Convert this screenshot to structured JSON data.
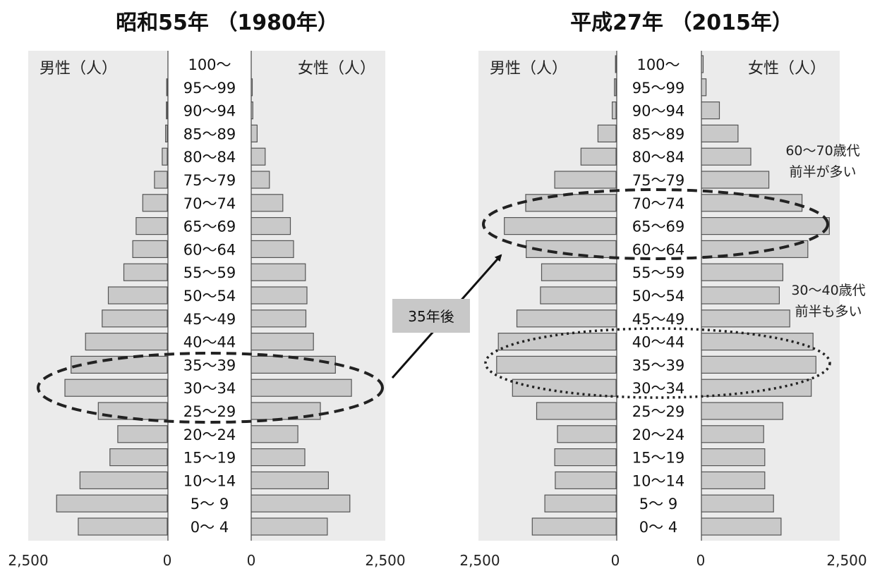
{
  "chart_data": [
    {
      "type": "bar",
      "title": "昭和55年 （1980年）",
      "male_label": "男性（人）",
      "female_label": "女性（人）",
      "xlim": [
        0,
        2500
      ],
      "axis_ticks": {
        "male": [
          "2,500",
          "0"
        ],
        "female": [
          "0",
          "2,500"
        ]
      },
      "categories": [
        "0～ 4",
        "5～ 9",
        "10～14",
        "15～19",
        "20～24",
        "25～29",
        "30～34",
        "35～39",
        "40～44",
        "45～49",
        "50～54",
        "55～59",
        "60～64",
        "65～69",
        "70～74",
        "75～79",
        "80～84",
        "85～89",
        "90～94",
        "95～99",
        "100～"
      ],
      "series": [
        {
          "name": "男性（人）",
          "values": [
            1600,
            1990,
            1570,
            1030,
            890,
            1240,
            1840,
            1730,
            1470,
            1170,
            1060,
            780,
            620,
            560,
            440,
            230,
            90,
            30,
            15,
            10,
            0
          ]
        },
        {
          "name": "女性（人）",
          "values": [
            1420,
            1840,
            1440,
            1000,
            870,
            1290,
            1870,
            1570,
            1160,
            1020,
            1040,
            1010,
            790,
            730,
            590,
            340,
            260,
            110,
            30,
            20,
            0
          ]
        }
      ],
      "highlight": {
        "categories": [
          "25～29",
          "30～34",
          "35～39"
        ],
        "style": "dashed"
      }
    },
    {
      "type": "bar",
      "title": "平成27年 （2015年）",
      "male_label": "男性（人）",
      "female_label": "女性（人）",
      "xlim": [
        0,
        2500
      ],
      "axis_ticks": {
        "male": [
          "2,500",
          "0"
        ],
        "female": [
          "0",
          "2,500"
        ]
      },
      "categories": [
        "0～ 4",
        "5～ 9",
        "10～14",
        "15～19",
        "20～24",
        "25～29",
        "30～34",
        "35～39",
        "40～44",
        "45～49",
        "50～54",
        "55～59",
        "60～64",
        "65～69",
        "70～74",
        "75～79",
        "80～84",
        "85～89",
        "90～94",
        "95～99",
        "100～"
      ],
      "series": [
        {
          "name": "男性（人）",
          "values": [
            1530,
            1300,
            1110,
            1120,
            1070,
            1450,
            1890,
            2180,
            2150,
            1810,
            1380,
            1360,
            1640,
            2040,
            1650,
            1120,
            640,
            330,
            70,
            30,
            10
          ]
        },
        {
          "name": "女性（人）",
          "values": [
            1370,
            1240,
            1090,
            1090,
            1070,
            1400,
            1890,
            1970,
            1920,
            1520,
            1340,
            1400,
            1830,
            2200,
            1730,
            1160,
            850,
            630,
            310,
            80,
            30
          ]
        }
      ],
      "highlight": [
        {
          "categories": [
            "60～64",
            "65～69",
            "70～74"
          ],
          "style": "dashed"
        },
        {
          "categories": [
            "30～34",
            "35～39",
            "40～44"
          ],
          "style": "dotted"
        }
      ]
    }
  ],
  "annotations": {
    "arrow_label": "35年後",
    "note_60_70": [
      "60～70歳代",
      "前半が多い"
    ],
    "note_30_40": [
      "30～40歳代",
      "前半も多い"
    ]
  }
}
